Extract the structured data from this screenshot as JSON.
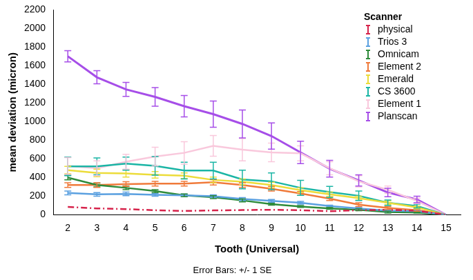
{
  "chart_data": {
    "type": "line",
    "x_label": "Tooth (Universal)",
    "y_label": "mean deviation (micron)",
    "annotation": "Error Bars: +/- 1 SE",
    "legend_title": "Scanner",
    "legend": "top-right",
    "grid": false,
    "categories": [
      2,
      3,
      4,
      5,
      6,
      7,
      8,
      9,
      10,
      11,
      12,
      13,
      14,
      15
    ],
    "ylim": [
      0,
      2200
    ],
    "yticks": [
      0,
      200,
      400,
      600,
      800,
      1000,
      1200,
      1400,
      1600,
      1800,
      2000,
      2200
    ],
    "series": [
      {
        "name": "physical",
        "color": "#d6224a",
        "line_style": "dash-dot",
        "values": [
          85,
          70,
          62,
          50,
          42,
          48,
          52,
          55,
          50,
          40,
          50,
          55,
          45,
          0
        ]
      },
      {
        "name": "Trios 3",
        "color": "#5aa0e0",
        "line_style": "solid",
        "values": [
          235,
          220,
          225,
          215,
          210,
          200,
          170,
          150,
          130,
          95,
          70,
          45,
          40,
          0
        ],
        "errors": [
          20,
          20,
          20,
          15,
          15,
          15,
          15,
          15,
          15,
          10,
          10,
          10,
          10,
          0
        ]
      },
      {
        "name": "Omnicam",
        "color": "#2e8b3a",
        "line_style": "solid",
        "values": [
          400,
          320,
          290,
          255,
          210,
          190,
          155,
          115,
          90,
          70,
          55,
          30,
          25,
          0
        ],
        "errors": [
          25,
          20,
          20,
          15,
          15,
          15,
          15,
          10,
          10,
          10,
          10,
          10,
          5,
          0
        ]
      },
      {
        "name": "Element 2",
        "color": "#f07a3a",
        "line_style": "solid",
        "values": [
          320,
          320,
          330,
          335,
          335,
          350,
          320,
          280,
          230,
          175,
          110,
          75,
          50,
          0
        ],
        "errors": [
          25,
          25,
          25,
          25,
          25,
          30,
          25,
          25,
          20,
          20,
          20,
          15,
          10,
          0
        ]
      },
      {
        "name": "Emerald",
        "color": "#ecdc3a",
        "line_style": "solid",
        "values": [
          480,
          450,
          445,
          430,
          420,
          375,
          355,
          320,
          265,
          220,
          180,
          130,
          80,
          0
        ],
        "errors": [
          40,
          40,
          40,
          35,
          30,
          30,
          30,
          30,
          25,
          25,
          20,
          20,
          15,
          0
        ]
      },
      {
        "name": "CS 3600",
        "color": "#1ab5a5",
        "line_style": "solid",
        "values": [
          520,
          520,
          550,
          525,
          475,
          475,
          380,
          360,
          290,
          245,
          205,
          130,
          95,
          0
        ],
        "errors": [
          100,
          90,
          70,
          100,
          90,
          90,
          100,
          90,
          80,
          60,
          50,
          30,
          20,
          0
        ]
      },
      {
        "name": "Element 1",
        "color": "#f9c8dc",
        "line_style": "solid",
        "values": [
          525,
          500,
          570,
          625,
          665,
          740,
          700,
          670,
          660,
          500,
          360,
          270,
          150,
          0
        ],
        "errors": [
          90,
          80,
          80,
          100,
          120,
          110,
          120,
          100,
          80,
          70,
          60,
          40,
          30,
          0
        ]
      },
      {
        "name": "Planscan",
        "color": "#a64ee8",
        "line_style": "solid",
        "values": [
          1700,
          1475,
          1345,
          1265,
          1165,
          1080,
          975,
          845,
          670,
          495,
          370,
          240,
          165,
          0
        ],
        "errors": [
          60,
          70,
          75,
          100,
          115,
          140,
          150,
          140,
          120,
          90,
          60,
          45,
          35,
          0
        ]
      }
    ]
  }
}
